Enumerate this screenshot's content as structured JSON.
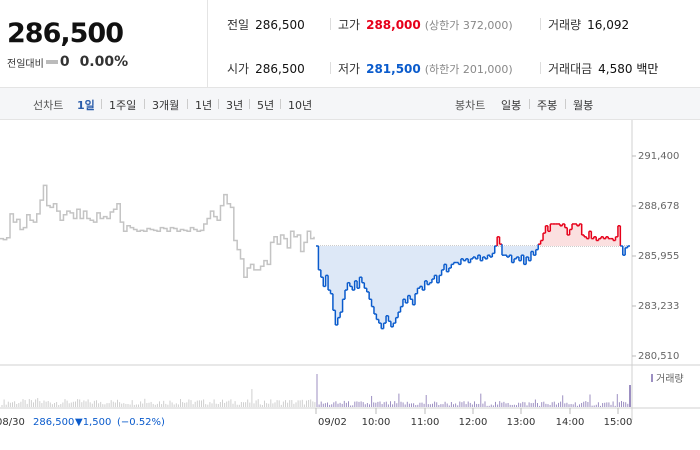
{
  "quote": {
    "price": "286,500",
    "change_label": "전일대비",
    "change_value": "0",
    "change_pct": "0.00%",
    "prev_close_label": "전일",
    "prev_close": "286,500",
    "high_label": "고가",
    "high": "288,000",
    "upper_limit": "(상한가 372,000)",
    "volume_label": "거래량",
    "volume": "16,092",
    "open_label": "시가",
    "open": "286,500",
    "low_label": "저가",
    "low": "281,500",
    "lower_limit": "(하한가 201,000)",
    "value_label": "거래대금",
    "value": "4,580 백만"
  },
  "toolbar": {
    "line_chart_label": "선차트",
    "periods": [
      "1일",
      "1주일",
      "3개월",
      "1년",
      "3년",
      "5년",
      "10년"
    ],
    "active_period": 0,
    "candle_chart_label": "봉차트",
    "candle_periods": [
      "일봉",
      "주봉",
      "월봉"
    ]
  },
  "colors": {
    "up": "#e6001a",
    "down": "#0a5bcc",
    "prev": "#c4c4c4",
    "down_fill": "#dde8f7",
    "up_fill": "#fbe0e0"
  },
  "chart_data": {
    "type": "line",
    "y_ticks": [
      "291,400",
      "288,678",
      "285,955",
      "283,233",
      "280,510"
    ],
    "ylim": [
      280510,
      291400
    ],
    "base_price": 286500,
    "prev_day_date": "08/30",
    "prev_day_info": {
      "price": "286,500",
      "change": "▼1,500",
      "pct": "(−0.52%)"
    },
    "day_date": "09/02",
    "x_ticks": [
      "10:00",
      "11:00",
      "12:00",
      "13:00",
      "14:00",
      "15:00"
    ],
    "volume_legend": "거래량",
    "prev_day_series": [
      286900,
      286850,
      286950,
      288250,
      287800,
      287950,
      287400,
      287500,
      288200,
      287900,
      287800,
      288250,
      289000,
      289800,
      288700,
      288600,
      288800,
      288400,
      287900,
      288200,
      288400,
      288300,
      288000,
      288500,
      288000,
      288400,
      288000,
      287900,
      287800,
      288300,
      288000,
      288100,
      288000,
      288350,
      288500,
      288800,
      287800,
      287300,
      287600,
      287500,
      287400,
      287300,
      287350,
      287300,
      287450,
      287400,
      287350,
      287300,
      287500,
      287450,
      287300,
      287500,
      287450,
      287300,
      287400,
      287350,
      287300,
      287500,
      287400,
      287300,
      287350,
      287700,
      288000,
      288400,
      288100,
      287900,
      288700,
      289300,
      288800,
      288600,
      286800,
      286300,
      285800,
      284800,
      285300,
      285500,
      285200,
      285200,
      285400,
      285700,
      285500,
      286700,
      287000,
      286600,
      287100,
      286900,
      286400,
      287300,
      287000,
      287100,
      286200,
      286700,
      287300,
      286900,
      287000
    ],
    "day_series": [
      286500,
      285200,
      284800,
      284300,
      284900,
      284100,
      283900,
      283000,
      282200,
      282600,
      282900,
      283600,
      284100,
      284500,
      284300,
      284100,
      284600,
      284200,
      284800,
      284500,
      284200,
      284000,
      283600,
      283200,
      282800,
      282500,
      282300,
      282000,
      282300,
      282700,
      282400,
      282100,
      282300,
      282600,
      282900,
      283200,
      283600,
      283400,
      283800,
      283600,
      283300,
      283900,
      284200,
      284300,
      284100,
      284600,
      284400,
      284500,
      284700,
      284900,
      284500,
      284900,
      285200,
      285500,
      285100,
      285300,
      285500,
      285600,
      285600,
      285500,
      285800,
      285700,
      285800,
      285600,
      285800,
      285900,
      285800,
      286000,
      285700,
      285900,
      285800,
      286000,
      285900,
      286100,
      286500,
      287000,
      286600,
      286000,
      286000,
      285900,
      286000,
      285600,
      285800,
      285900,
      285700,
      286000,
      285500,
      285900,
      285700,
      286200,
      286000,
      286300,
      286600,
      286800,
      287200,
      287600,
      287300,
      287700,
      287700,
      287700,
      287700,
      287600,
      287700,
      287500,
      287100,
      287400,
      287700,
      287700,
      287600,
      287700,
      287100,
      287000,
      286900,
      287300,
      286900,
      287000,
      286800,
      286900,
      287000,
      286900,
      287000,
      286900,
      286900,
      286800,
      287000,
      287600,
      286500,
      286000,
      286400,
      286500,
      286500
    ]
  }
}
